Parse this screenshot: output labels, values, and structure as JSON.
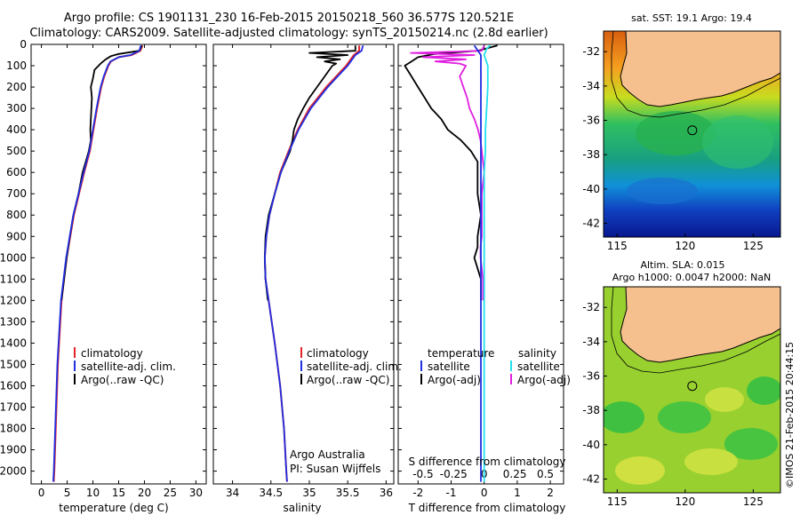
{
  "figure": {
    "title_line1": "Argo profile: CS 1901131_230 16-Feb-2015 20150218_560 36.577S 120.521E",
    "title_line2": "Climatology: CARS2009. Satellite-adjusted climatology: synTS_20150214.nc (2.8d earlier)",
    "credit": "©IMOS 21-Feb-2015 20:44:15",
    "institution": "Argo Australia",
    "pi": "PI: Susan Wijffels"
  },
  "colors": {
    "climatology": "#e0242a",
    "satellite": "#1f2ee0",
    "argo": "#000000",
    "sat_salinity": "#22e0f0",
    "argo_salinity": "#e020e0",
    "land": "#f5bf8e"
  },
  "chart_data": [
    {
      "type": "line",
      "id": "temperature",
      "xlabel": "temperature (deg C)",
      "xlim": [
        -2,
        32
      ],
      "ylim": [
        2060,
        0
      ],
      "xticks": [
        "0",
        "5",
        "10",
        "15",
        "20",
        "25",
        "30"
      ],
      "yticks": [
        "0",
        "100",
        "200",
        "300",
        "400",
        "500",
        "600",
        "700",
        "800",
        "900",
        "1000",
        "1100",
        "1200",
        "1300",
        "1400",
        "1500",
        "1600",
        "1700",
        "1800",
        "1900",
        "2000"
      ],
      "legend": [
        "climatology",
        "satellite-adj. clim.",
        "Argo(..raw -QC)"
      ],
      "series": [
        {
          "name": "climatology",
          "depth": [
            5,
            30,
            50,
            60,
            80,
            100,
            150,
            200,
            300,
            400,
            500,
            600,
            800,
            1000,
            1200,
            1500,
            2000,
            2050
          ],
          "values": [
            19.6,
            19.2,
            17.5,
            15.0,
            13.5,
            13.0,
            12.2,
            11.6,
            10.8,
            10.1,
            9.4,
            8.3,
            6.3,
            4.9,
            3.9,
            3.2,
            2.5,
            2.4
          ]
        },
        {
          "name": "satellite-adj. clim.",
          "depth": [
            5,
            30,
            50,
            60,
            80,
            100,
            150,
            200,
            300,
            400,
            500,
            600,
            800,
            1000,
            1200,
            1500,
            2000,
            2050
          ],
          "values": [
            19.3,
            19.0,
            17.3,
            15.0,
            13.4,
            12.9,
            12.1,
            11.5,
            10.7,
            10.0,
            9.3,
            8.2,
            6.2,
            4.8,
            3.8,
            3.1,
            2.4,
            2.3
          ]
        },
        {
          "name": "Argo(..raw -QC)",
          "depth": [
            5,
            30,
            45,
            55,
            70,
            90,
            120,
            160,
            200,
            250,
            300,
            400,
            450,
            500,
            600,
            700,
            800,
            900,
            1000,
            1100,
            1200
          ],
          "values": [
            19.5,
            19.0,
            15.0,
            13.5,
            12.5,
            11.5,
            10.3,
            10.0,
            9.6,
            9.8,
            9.7,
            9.5,
            9.6,
            9.2,
            8.0,
            7.2,
            6.2,
            5.5,
            4.9,
            4.4,
            3.9
          ]
        }
      ]
    },
    {
      "type": "line",
      "id": "salinity",
      "xlabel": "salinity",
      "xlim": [
        33.75,
        36.1
      ],
      "ylim": [
        2060,
        0
      ],
      "xticks": [
        "34",
        "34.5",
        "35",
        "35.5",
        "36"
      ],
      "legend": [
        "climatology",
        "satellite-adj. clim.",
        "Argo(..raw -QC)"
      ],
      "series": [
        {
          "name": "climatology",
          "depth": [
            5,
            30,
            50,
            80,
            100,
            150,
            200,
            300,
            400,
            500,
            600,
            700,
            800,
            900,
            1000,
            1100,
            1200,
            1400,
            1600,
            1800,
            2000,
            2050
          ],
          "values": [
            35.65,
            35.65,
            35.58,
            35.52,
            35.48,
            35.35,
            35.22,
            35.0,
            34.85,
            34.73,
            34.62,
            34.55,
            34.48,
            34.44,
            34.42,
            34.43,
            34.47,
            34.55,
            34.62,
            34.67,
            34.7,
            34.71
          ]
        },
        {
          "name": "satellite-adj. clim.",
          "depth": [
            5,
            30,
            50,
            80,
            100,
            150,
            200,
            300,
            400,
            500,
            600,
            700,
            800,
            900,
            1000,
            1100,
            1200,
            1400,
            1600,
            1800,
            2000,
            2050
          ],
          "values": [
            35.7,
            35.68,
            35.6,
            35.54,
            35.5,
            35.37,
            35.24,
            35.02,
            34.86,
            34.74,
            34.63,
            34.55,
            34.48,
            34.44,
            34.42,
            34.43,
            34.47,
            34.55,
            34.62,
            34.67,
            34.7,
            34.71
          ]
        },
        {
          "name": "Argo(..raw -QC)",
          "depth": [
            5,
            30,
            40,
            50,
            60,
            70,
            80,
            90,
            100,
            150,
            200,
            250,
            300,
            350,
            400,
            450,
            500,
            600,
            700,
            800,
            900,
            1000,
            1100,
            1200
          ],
          "values": [
            35.6,
            35.6,
            35.0,
            35.5,
            35.1,
            35.4,
            35.2,
            35.35,
            35.3,
            35.2,
            35.1,
            35.0,
            34.92,
            34.85,
            34.8,
            34.78,
            34.75,
            34.63,
            34.55,
            34.47,
            34.43,
            34.42,
            34.43,
            34.46
          ]
        }
      ]
    },
    {
      "type": "line",
      "id": "difference",
      "xlabel_top": "S difference from climatology",
      "xlabel": "T difference from climatology",
      "xlim_T": [
        -2.6,
        2.4
      ],
      "ylim": [
        2060,
        0
      ],
      "xticks_T": [
        "-2",
        "-1",
        "0",
        "1",
        "2"
      ],
      "xticks_S": [
        "-0.5",
        "-0.25",
        "0",
        "0.25",
        "0.5"
      ],
      "legend_headers": [
        "temperature",
        "salinity"
      ],
      "legend": [
        "satellite",
        "Argo(-adj)",
        "satellite",
        "Argo(-adj)"
      ],
      "series": [
        {
          "name": "temperature satellite",
          "quantity": "T",
          "depth": [
            5,
            50,
            100,
            200,
            300,
            400,
            500,
            600,
            800,
            1000,
            1500,
            2000,
            2050
          ],
          "values": [
            -0.3,
            -0.1,
            -0.1,
            -0.1,
            -0.1,
            -0.1,
            -0.1,
            -0.1,
            -0.1,
            -0.1,
            -0.1,
            -0.1,
            -0.1
          ]
        },
        {
          "name": "temperature Argo(-adj)",
          "quantity": "T",
          "depth": [
            5,
            30,
            45,
            60,
            80,
            100,
            150,
            200,
            250,
            300,
            350,
            400,
            450,
            500,
            550,
            600,
            700,
            800,
            900,
            950,
            1000,
            1050,
            1100,
            1150,
            1200
          ],
          "values": [
            0.4,
            -0.2,
            -1.5,
            -2.0,
            -2.2,
            -2.4,
            -2.2,
            -2.0,
            -1.8,
            -1.6,
            -1.3,
            -1.1,
            -0.7,
            -0.4,
            -0.2,
            -0.2,
            -0.2,
            -0.1,
            -0.2,
            -0.2,
            -0.3,
            -0.2,
            -0.1,
            -0.1,
            -0.1
          ]
        },
        {
          "name": "salinity satellite",
          "quantity": "S",
          "depth": [
            5,
            20,
            50,
            100,
            200,
            300,
            400,
            500,
            600,
            800,
            1000,
            1500,
            2000,
            2050
          ],
          "values": [
            0.05,
            0.02,
            0.0,
            0.03,
            0.03,
            0.02,
            0.01,
            0.01,
            0.0,
            0.0,
            0.0,
            0.0,
            0.0,
            0.0
          ]
        },
        {
          "name": "salinity Argo(-adj)",
          "quantity": "S",
          "depth": [
            5,
            30,
            40,
            50,
            60,
            70,
            80,
            90,
            100,
            150,
            200,
            250,
            300,
            350,
            400,
            450,
            500,
            600,
            700,
            800,
            900,
            950,
            1000,
            1050,
            1100,
            1150,
            1200
          ],
          "values": [
            0.0,
            -0.02,
            -0.6,
            -0.08,
            -0.5,
            -0.15,
            -0.4,
            -0.2,
            -0.15,
            -0.2,
            -0.17,
            -0.14,
            -0.12,
            -0.08,
            -0.05,
            -0.03,
            -0.02,
            0.0,
            -0.02,
            -0.02,
            -0.02,
            -0.03,
            -0.03,
            -0.02,
            -0.01,
            -0.01,
            -0.01
          ]
        }
      ]
    },
    {
      "type": "heatmap",
      "id": "sst-map",
      "title": "sat. SST: 19.1 Argo: 19.4",
      "xlim": [
        114,
        127
      ],
      "ylim": [
        -42.8,
        -30.8
      ],
      "xticks": [
        "115",
        "120",
        "125"
      ],
      "yticks": [
        "-32",
        "-34",
        "-36",
        "-38",
        "-40",
        "-42"
      ],
      "marker": {
        "lon": 120.521,
        "lat": -36.577
      }
    },
    {
      "type": "heatmap",
      "id": "sla-map",
      "title_line1": "Altim. SLA: 0.015",
      "title_line2": "Argo h1000: 0.0047 h2000: NaN",
      "xlim": [
        114,
        127
      ],
      "ylim": [
        -42.8,
        -30.8
      ],
      "xticks": [
        "115",
        "120",
        "125"
      ],
      "yticks": [
        "-32",
        "-34",
        "-36",
        "-38",
        "-40",
        "-42"
      ],
      "marker": {
        "lon": 120.521,
        "lat": -36.577
      }
    }
  ]
}
